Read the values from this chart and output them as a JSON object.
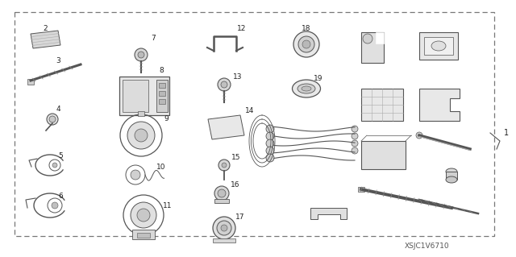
{
  "diagram_code": "XSJC1V6710",
  "bg_color": "#ffffff",
  "fig_width": 6.4,
  "fig_height": 3.19,
  "dpi": 100
}
